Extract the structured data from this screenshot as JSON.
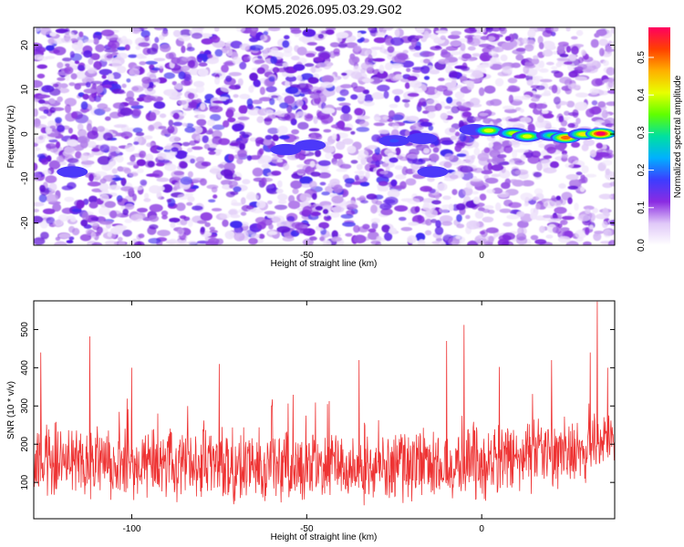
{
  "title": "KOM5.2026.095.03.29.G02",
  "chart_data": [
    {
      "type": "heatmap",
      "xlabel": "Height of straight line (km)",
      "ylabel": "Frequency (Hz)",
      "xlim": [
        -128,
        38
      ],
      "ylim": [
        -25,
        24
      ],
      "x_ticks": [
        -100,
        -50,
        0
      ],
      "y_ticks": [
        -20,
        -10,
        0,
        10,
        20
      ],
      "colorbar": {
        "label": "Normalized spectral amplitude",
        "range": [
          0.0,
          0.58
        ],
        "ticks": [
          0.0,
          0.1,
          0.2,
          0.3,
          0.4,
          0.5
        ],
        "colors": [
          "#ffffff",
          "#e0c8f8",
          "#8a2be2",
          "#3d3dff",
          "#00b0ff",
          "#00e0a0",
          "#60ff00",
          "#e8ff00",
          "#ffb000",
          "#ff4000",
          "#ff0060"
        ]
      },
      "grid": false,
      "signal_track": {
        "frequency": 0,
        "blobs": [
          {
            "x": -117,
            "f": -8.5,
            "amp": 0.12
          },
          {
            "x": -56,
            "f": -3.5,
            "amp": 0.13
          },
          {
            "x": -49,
            "f": -2.5,
            "amp": 0.12
          },
          {
            "x": -25,
            "f": -1.5,
            "amp": 0.18
          },
          {
            "x": -17,
            "f": -1.0,
            "amp": 0.13
          },
          {
            "x": -14,
            "f": -8.5,
            "amp": 0.11
          },
          {
            "x": -2,
            "f": 1.0,
            "amp": 0.14
          },
          {
            "x": 2,
            "f": 0.8,
            "amp": 0.4
          },
          {
            "x": 9,
            "f": 0.2,
            "amp": 0.38
          },
          {
            "x": 13,
            "f": -0.5,
            "amp": 0.4
          },
          {
            "x": 20,
            "f": -0.3,
            "amp": 0.32
          },
          {
            "x": 24,
            "f": -0.8,
            "amp": 0.5
          },
          {
            "x": 29,
            "f": 0.0,
            "amp": 0.42
          },
          {
            "x": 34,
            "f": 0.1,
            "amp": 0.58
          }
        ]
      }
    },
    {
      "type": "line",
      "xlabel": "Height of straight line (km)",
      "ylabel": "SNR (10 * v/v)",
      "xlim": [
        -128,
        38
      ],
      "ylim": [
        5,
        575
      ],
      "x_ticks": [
        -100,
        -50,
        0
      ],
      "y_ticks": [
        100,
        200,
        300,
        400,
        500
      ],
      "line_color": "#ee3333",
      "grid": false,
      "series": [
        {
          "baseline_profile": [
            [
              -128,
              160
            ],
            [
              -100,
              150
            ],
            [
              -75,
              145
            ],
            [
              -50,
              140
            ],
            [
              -25,
              145
            ],
            [
              0,
              150
            ],
            [
              20,
              175
            ],
            [
              38,
              215
            ]
          ],
          "noise_amplitude": 110,
          "spikes": [
            [
              -126,
              440
            ],
            [
              -112,
              482
            ],
            [
              -100,
              400
            ],
            [
              -75,
              410
            ],
            [
              -60,
              300
            ],
            [
              -35,
              420
            ],
            [
              -10,
              470
            ],
            [
              -5,
              512
            ],
            [
              5,
              402
            ],
            [
              20,
              420
            ],
            [
              31,
              440
            ],
            [
              33,
              573
            ],
            [
              36,
              400
            ]
          ]
        }
      ]
    }
  ]
}
